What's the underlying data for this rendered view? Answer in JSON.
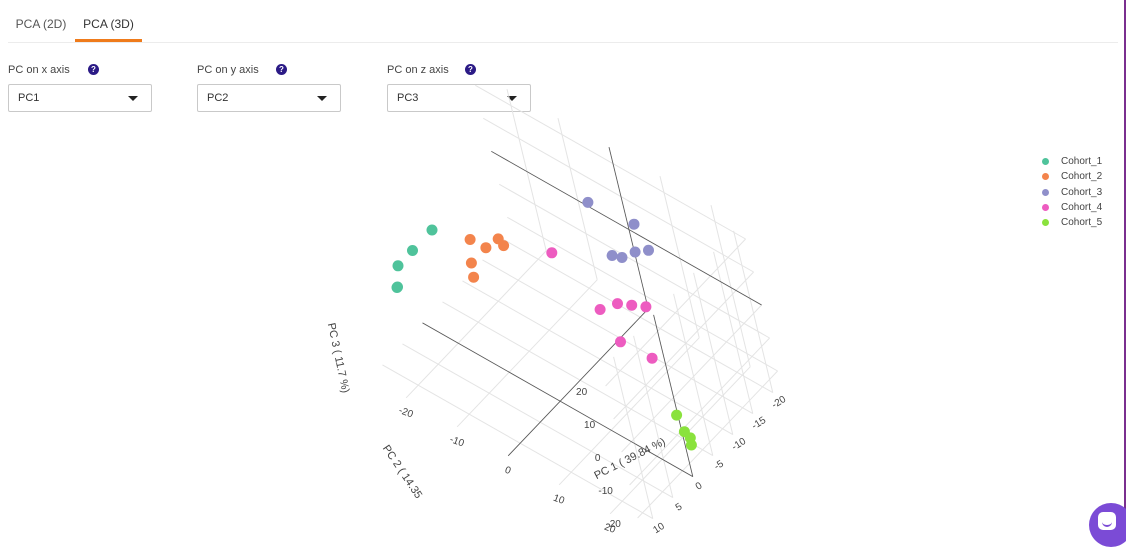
{
  "tabs": [
    {
      "label": "PCA (2D)",
      "active": false
    },
    {
      "label": "PCA (3D)",
      "active": true
    }
  ],
  "controls": {
    "x": {
      "label": "PC on x axis",
      "value": "PC1",
      "help": "?"
    },
    "y": {
      "label": "PC on y axis",
      "value": "PC2",
      "help": "?"
    },
    "z": {
      "label": "PC on z axis",
      "value": "PC3",
      "help": "?"
    }
  },
  "accent_color": "#ef7b1b",
  "chart_data": {
    "type": "scatter",
    "subtype": "3d",
    "axes": {
      "x": {
        "label": "PC 1 ( 39.84 %)",
        "ticks": [
          -20,
          -10,
          0,
          10,
          20
        ],
        "range": [
          -27,
          26
        ]
      },
      "y": {
        "label": "PC 2 ( 14.35",
        "ticks": [
          -20,
          -15,
          -10,
          -5,
          0,
          5,
          10
        ],
        "range": [
          -22,
          13
        ]
      },
      "z": {
        "label": "PC 3 ( 11.7 %)",
        "ticks": [
          -20,
          -10,
          0,
          10,
          20
        ],
        "range": [
          -24,
          25
        ]
      }
    },
    "grid": true,
    "legend_position": "top-right",
    "series": [
      {
        "name": "Cohort_1",
        "color": "#4fc39b",
        "points": [
          [
            -22,
            -2,
            6
          ],
          [
            -23,
            2,
            4
          ],
          [
            -24,
            6,
            -3
          ],
          [
            -25,
            5,
            -5
          ],
          [
            -26,
            3,
            -2
          ]
        ]
      },
      {
        "name": "Cohort_2",
        "color": "#f3844c",
        "points": [
          [
            -15,
            -3,
            8
          ],
          [
            -13,
            -4,
            6
          ],
          [
            -10,
            -5,
            8
          ],
          [
            -14,
            -1,
            0
          ],
          [
            -16,
            -3,
            0
          ],
          [
            -12,
            -6,
            7
          ]
        ]
      },
      {
        "name": "Cohort_3",
        "color": "#8f8fca",
        "points": [
          [
            6,
            -18,
            12
          ],
          [
            -1,
            -16,
            15
          ],
          [
            7,
            -16,
            7
          ],
          [
            9,
            -17,
            8
          ],
          [
            6,
            -14,
            7
          ],
          [
            5,
            -13,
            8
          ]
        ]
      },
      {
        "name": "Cohort_4",
        "color": "#ed5cc0",
        "points": [
          [
            -4,
            -9,
            6
          ],
          [
            5,
            -8,
            -2
          ],
          [
            7,
            -10,
            -1
          ],
          [
            9,
            -11,
            -1
          ],
          [
            11,
            -12,
            -1
          ],
          [
            9,
            -7,
            -7
          ],
          [
            13,
            -9,
            -11
          ]
        ]
      },
      {
        "name": "Cohort_5",
        "color": "#8ae23d",
        "points": [
          [
            20,
            -5,
            -17
          ],
          [
            22,
            -4,
            -19
          ],
          [
            23,
            -4,
            -20
          ],
          [
            24,
            -3,
            -20
          ]
        ]
      }
    ]
  }
}
